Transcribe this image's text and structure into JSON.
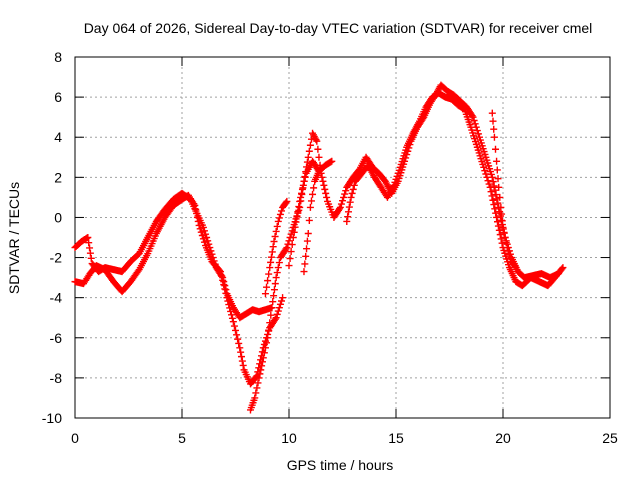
{
  "colors": {
    "series": "#ff0000",
    "grid": "#a0a0a0",
    "axis": "#000000",
    "background": "#ffffff"
  },
  "chart_data": {
    "type": "scatter",
    "title": "Day 064 of 2026, Sidereal Day-to-day VTEC variation (SDTVAR) for receiver cmel",
    "xlabel": "GPS time / hours",
    "ylabel": "SDTVAR / TECUs",
    "xlim": [
      0,
      25
    ],
    "ylim": [
      -10,
      8
    ],
    "xticks": [
      0,
      5,
      10,
      15,
      20,
      25
    ],
    "yticks": [
      -10,
      -8,
      -6,
      -4,
      -2,
      0,
      2,
      4,
      6,
      8
    ],
    "grid": true,
    "marker": "+",
    "series": [
      {
        "name": "SDTVAR",
        "traces": [
          [
            [
              0.0,
              -1.5
            ],
            [
              0.3,
              -1.2
            ],
            [
              0.6,
              -1.0
            ],
            [
              0.8,
              -2.3
            ],
            [
              1.1,
              -2.7
            ],
            [
              1.4,
              -2.5
            ],
            [
              1.8,
              -2.6
            ],
            [
              2.2,
              -2.7
            ],
            [
              2.6,
              -2.2
            ],
            [
              3.0,
              -1.8
            ],
            [
              3.4,
              -1.0
            ],
            [
              3.8,
              -0.2
            ],
            [
              4.2,
              0.4
            ],
            [
              4.6,
              0.9
            ],
            [
              5.0,
              1.2
            ],
            [
              5.4,
              0.9
            ],
            [
              5.7,
              0.2
            ],
            [
              6.0,
              -0.5
            ],
            [
              6.3,
              -1.5
            ],
            [
              6.6,
              -2.5
            ],
            [
              6.9,
              -3.0
            ],
            [
              7.1,
              -3.8
            ],
            [
              7.4,
              -4.5
            ],
            [
              7.7,
              -5.0
            ],
            [
              8.0,
              -4.8
            ],
            [
              8.3,
              -4.6
            ],
            [
              8.6,
              -4.7
            ],
            [
              8.9,
              -4.6
            ],
            [
              9.2,
              -4.5
            ]
          ],
          [
            [
              0.0,
              -3.2
            ],
            [
              0.4,
              -3.3
            ],
            [
              0.7,
              -2.8
            ],
            [
              1.0,
              -2.4
            ],
            [
              1.4,
              -2.6
            ],
            [
              1.8,
              -3.2
            ],
            [
              2.2,
              -3.7
            ],
            [
              2.6,
              -3.2
            ],
            [
              3.0,
              -2.6
            ],
            [
              3.4,
              -1.8
            ],
            [
              3.8,
              -0.8
            ],
            [
              4.2,
              0.0
            ],
            [
              4.6,
              0.6
            ],
            [
              5.0,
              0.9
            ],
            [
              5.3,
              1.1
            ],
            [
              5.6,
              0.6
            ],
            [
              5.8,
              -0.4
            ],
            [
              6.1,
              -1.4
            ],
            [
              6.4,
              -2.2
            ],
            [
              6.8,
              -2.7
            ],
            [
              7.1,
              -4.0
            ],
            [
              7.4,
              -5.2
            ],
            [
              7.7,
              -6.5
            ],
            [
              7.9,
              -7.6
            ],
            [
              8.2,
              -8.3
            ],
            [
              8.5,
              -7.9
            ],
            [
              8.8,
              -6.5
            ],
            [
              9.1,
              -5.5
            ],
            [
              9.4,
              -5.0
            ],
            [
              9.7,
              -4.0
            ]
          ],
          [
            [
              8.2,
              -9.6
            ],
            [
              8.4,
              -9.0
            ],
            [
              8.6,
              -8.0
            ],
            [
              8.8,
              -7.0
            ],
            [
              9.0,
              -6.0
            ],
            [
              9.2,
              -4.5
            ],
            [
              9.4,
              -3.0
            ],
            [
              9.6,
              -2.0
            ],
            [
              9.9,
              -1.5
            ],
            [
              10.2,
              -0.5
            ],
            [
              10.5,
              0.5
            ],
            [
              10.7,
              1.8
            ],
            [
              10.9,
              3.0
            ],
            [
              11.1,
              4.2
            ],
            [
              11.3,
              3.8
            ],
            [
              11.5,
              2.2
            ],
            [
              11.8,
              0.8
            ],
            [
              12.1,
              0.0
            ],
            [
              12.4,
              0.5
            ],
            [
              12.7,
              1.5
            ],
            [
              13.0,
              2.0
            ],
            [
              13.3,
              2.4
            ],
            [
              13.6,
              3.0
            ],
            [
              13.9,
              2.5
            ],
            [
              14.2,
              2.2
            ],
            [
              14.5,
              1.8
            ],
            [
              14.8,
              1.2
            ],
            [
              15.1,
              1.8
            ],
            [
              15.4,
              2.8
            ],
            [
              15.7,
              3.8
            ],
            [
              16.0,
              4.5
            ],
            [
              16.3,
              5.0
            ],
            [
              16.6,
              5.7
            ],
            [
              16.9,
              6.2
            ],
            [
              17.1,
              6.6
            ],
            [
              17.4,
              6.3
            ],
            [
              17.7,
              6.1
            ],
            [
              18.0,
              5.8
            ],
            [
              18.3,
              5.5
            ],
            [
              18.6,
              5.0
            ],
            [
              18.9,
              4.0
            ],
            [
              19.2,
              3.0
            ],
            [
              19.5,
              2.0
            ],
            [
              19.8,
              0.5
            ],
            [
              20.1,
              -1.0
            ],
            [
              20.4,
              -2.0
            ],
            [
              20.7,
              -2.7
            ],
            [
              21.0,
              -3.0
            ],
            [
              21.4,
              -2.9
            ],
            [
              21.8,
              -2.8
            ],
            [
              22.2,
              -3.0
            ],
            [
              22.6,
              -2.8
            ]
          ],
          [
            [
              8.9,
              -3.8
            ],
            [
              9.1,
              -2.5
            ],
            [
              9.3,
              -1.2
            ],
            [
              9.5,
              -0.2
            ],
            [
              9.7,
              0.5
            ],
            [
              9.9,
              0.8
            ]
          ],
          [
            [
              10.0,
              -2.4
            ],
            [
              10.2,
              -1.0
            ],
            [
              10.5,
              0.8
            ],
            [
              10.8,
              2.2
            ],
            [
              11.1,
              2.8
            ],
            [
              11.4,
              2.3
            ],
            [
              11.7,
              2.6
            ],
            [
              12.0,
              2.8
            ]
          ],
          [
            [
              10.7,
              -2.7
            ],
            [
              10.9,
              -0.8
            ],
            [
              11.0,
              0.5
            ],
            [
              11.2,
              1.8
            ],
            [
              11.4,
              2.3
            ]
          ],
          [
            [
              12.7,
              -0.2
            ],
            [
              12.9,
              1.0
            ],
            [
              13.1,
              1.8
            ],
            [
              13.4,
              2.2
            ],
            [
              13.7,
              2.6
            ],
            [
              14.0,
              2.0
            ],
            [
              14.3,
              1.5
            ],
            [
              14.6,
              1.0
            ],
            [
              14.9,
              1.6
            ],
            [
              15.2,
              2.5
            ],
            [
              15.5,
              3.5
            ],
            [
              15.8,
              4.2
            ],
            [
              16.1,
              4.8
            ],
            [
              16.4,
              5.5
            ],
            [
              16.7,
              6.0
            ],
            [
              17.0,
              6.2
            ],
            [
              17.3,
              6.0
            ],
            [
              17.6,
              5.9
            ],
            [
              17.9,
              5.6
            ],
            [
              18.2,
              5.4
            ],
            [
              18.5,
              4.5
            ],
            [
              18.8,
              3.5
            ],
            [
              19.1,
              2.5
            ],
            [
              19.4,
              1.5
            ],
            [
              19.7,
              0.0
            ],
            [
              20.0,
              -1.5
            ],
            [
              20.3,
              -2.5
            ],
            [
              20.6,
              -3.2
            ],
            [
              20.9,
              -3.4
            ],
            [
              21.3,
              -3.0
            ],
            [
              21.7,
              -3.2
            ],
            [
              22.1,
              -3.4
            ],
            [
              22.5,
              -2.9
            ],
            [
              22.8,
              -2.5
            ]
          ],
          [
            [
              19.5,
              5.2
            ],
            [
              19.6,
              4.0
            ],
            [
              19.7,
              2.8
            ],
            [
              19.8,
              1.5
            ],
            [
              19.9,
              0.5
            ],
            [
              20.0,
              -0.5
            ],
            [
              20.2,
              -1.5
            ],
            [
              20.4,
              -2.2
            ],
            [
              20.6,
              -2.5
            ]
          ]
        ]
      }
    ]
  }
}
